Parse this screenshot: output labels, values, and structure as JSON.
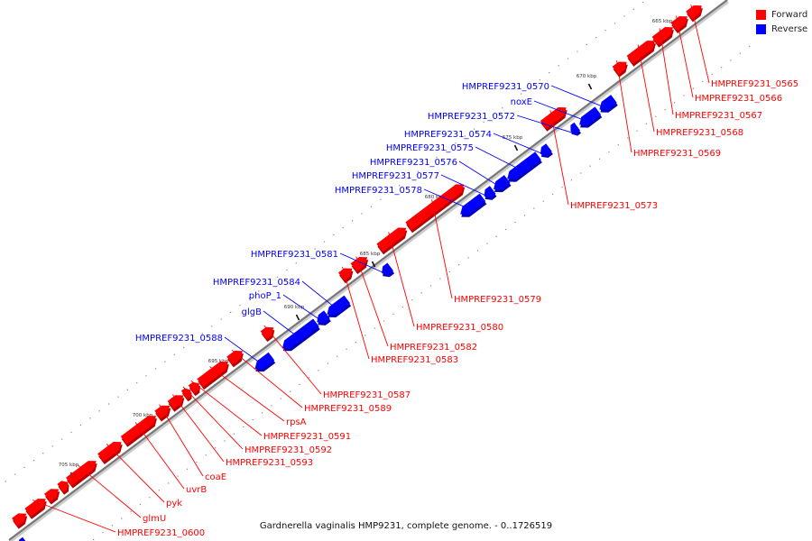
{
  "caption": "Gardnerella vaginalis HMP9231, complete genome. - 0..1726519",
  "legend": [
    {
      "label": "Forward",
      "color": "#ff0000"
    },
    {
      "label": "Reverse",
      "color": "#0000ff"
    }
  ],
  "colors": {
    "forward": "#ff0000",
    "reverse": "#0000ff",
    "backbone": "#777777",
    "text": "#222222"
  },
  "ticks": [
    "665 kbp",
    "670 kbp",
    "675 kbp",
    "680 kbp",
    "685 kbp",
    "690 kbp",
    "695 kbp",
    "700 kbp",
    "705 kbp"
  ],
  "genes": [
    {
      "name": "HMPREF9231_0565",
      "strand": "forward"
    },
    {
      "name": "HMPREF9231_0566",
      "strand": "forward"
    },
    {
      "name": "HMPREF9231_0567",
      "strand": "forward"
    },
    {
      "name": "HMPREF9231_0568",
      "strand": "forward"
    },
    {
      "name": "HMPREF9231_0569",
      "strand": "forward"
    },
    {
      "name": "HMPREF9231_0570",
      "strand": "reverse"
    },
    {
      "name": "noxE",
      "strand": "reverse"
    },
    {
      "name": "HMPREF9231_0572",
      "strand": "reverse"
    },
    {
      "name": "HMPREF9231_0573",
      "strand": "forward"
    },
    {
      "name": "HMPREF9231_0574",
      "strand": "reverse"
    },
    {
      "name": "HMPREF9231_0575",
      "strand": "reverse"
    },
    {
      "name": "HMPREF9231_0576",
      "strand": "reverse"
    },
    {
      "name": "HMPREF9231_0577",
      "strand": "reverse"
    },
    {
      "name": "HMPREF9231_0578",
      "strand": "reverse"
    },
    {
      "name": "HMPREF9231_0579",
      "strand": "forward"
    },
    {
      "name": "HMPREF9231_0580",
      "strand": "forward"
    },
    {
      "name": "HMPREF9231_0581",
      "strand": "reverse"
    },
    {
      "name": "HMPREF9231_0582",
      "strand": "forward"
    },
    {
      "name": "HMPREF9231_0583",
      "strand": "forward"
    },
    {
      "name": "HMPREF9231_0584",
      "strand": "reverse"
    },
    {
      "name": "phoP_1",
      "strand": "reverse"
    },
    {
      "name": "glgB",
      "strand": "reverse"
    },
    {
      "name": "HMPREF9231_0588",
      "strand": "reverse"
    },
    {
      "name": "HMPREF9231_0587",
      "strand": "forward"
    },
    {
      "name": "HMPREF9231_0589",
      "strand": "forward"
    },
    {
      "name": "rpsA",
      "strand": "forward"
    },
    {
      "name": "HMPREF9231_0591",
      "strand": "forward"
    },
    {
      "name": "HMPREF9231_0592",
      "strand": "forward"
    },
    {
      "name": "HMPREF9231_0593",
      "strand": "forward"
    },
    {
      "name": "coaE",
      "strand": "forward"
    },
    {
      "name": "uvrB",
      "strand": "forward"
    },
    {
      "name": "pyk",
      "strand": "forward"
    },
    {
      "name": "glmU",
      "strand": "forward"
    },
    {
      "name": "HMPREF9231_0600",
      "strand": "forward"
    }
  ]
}
